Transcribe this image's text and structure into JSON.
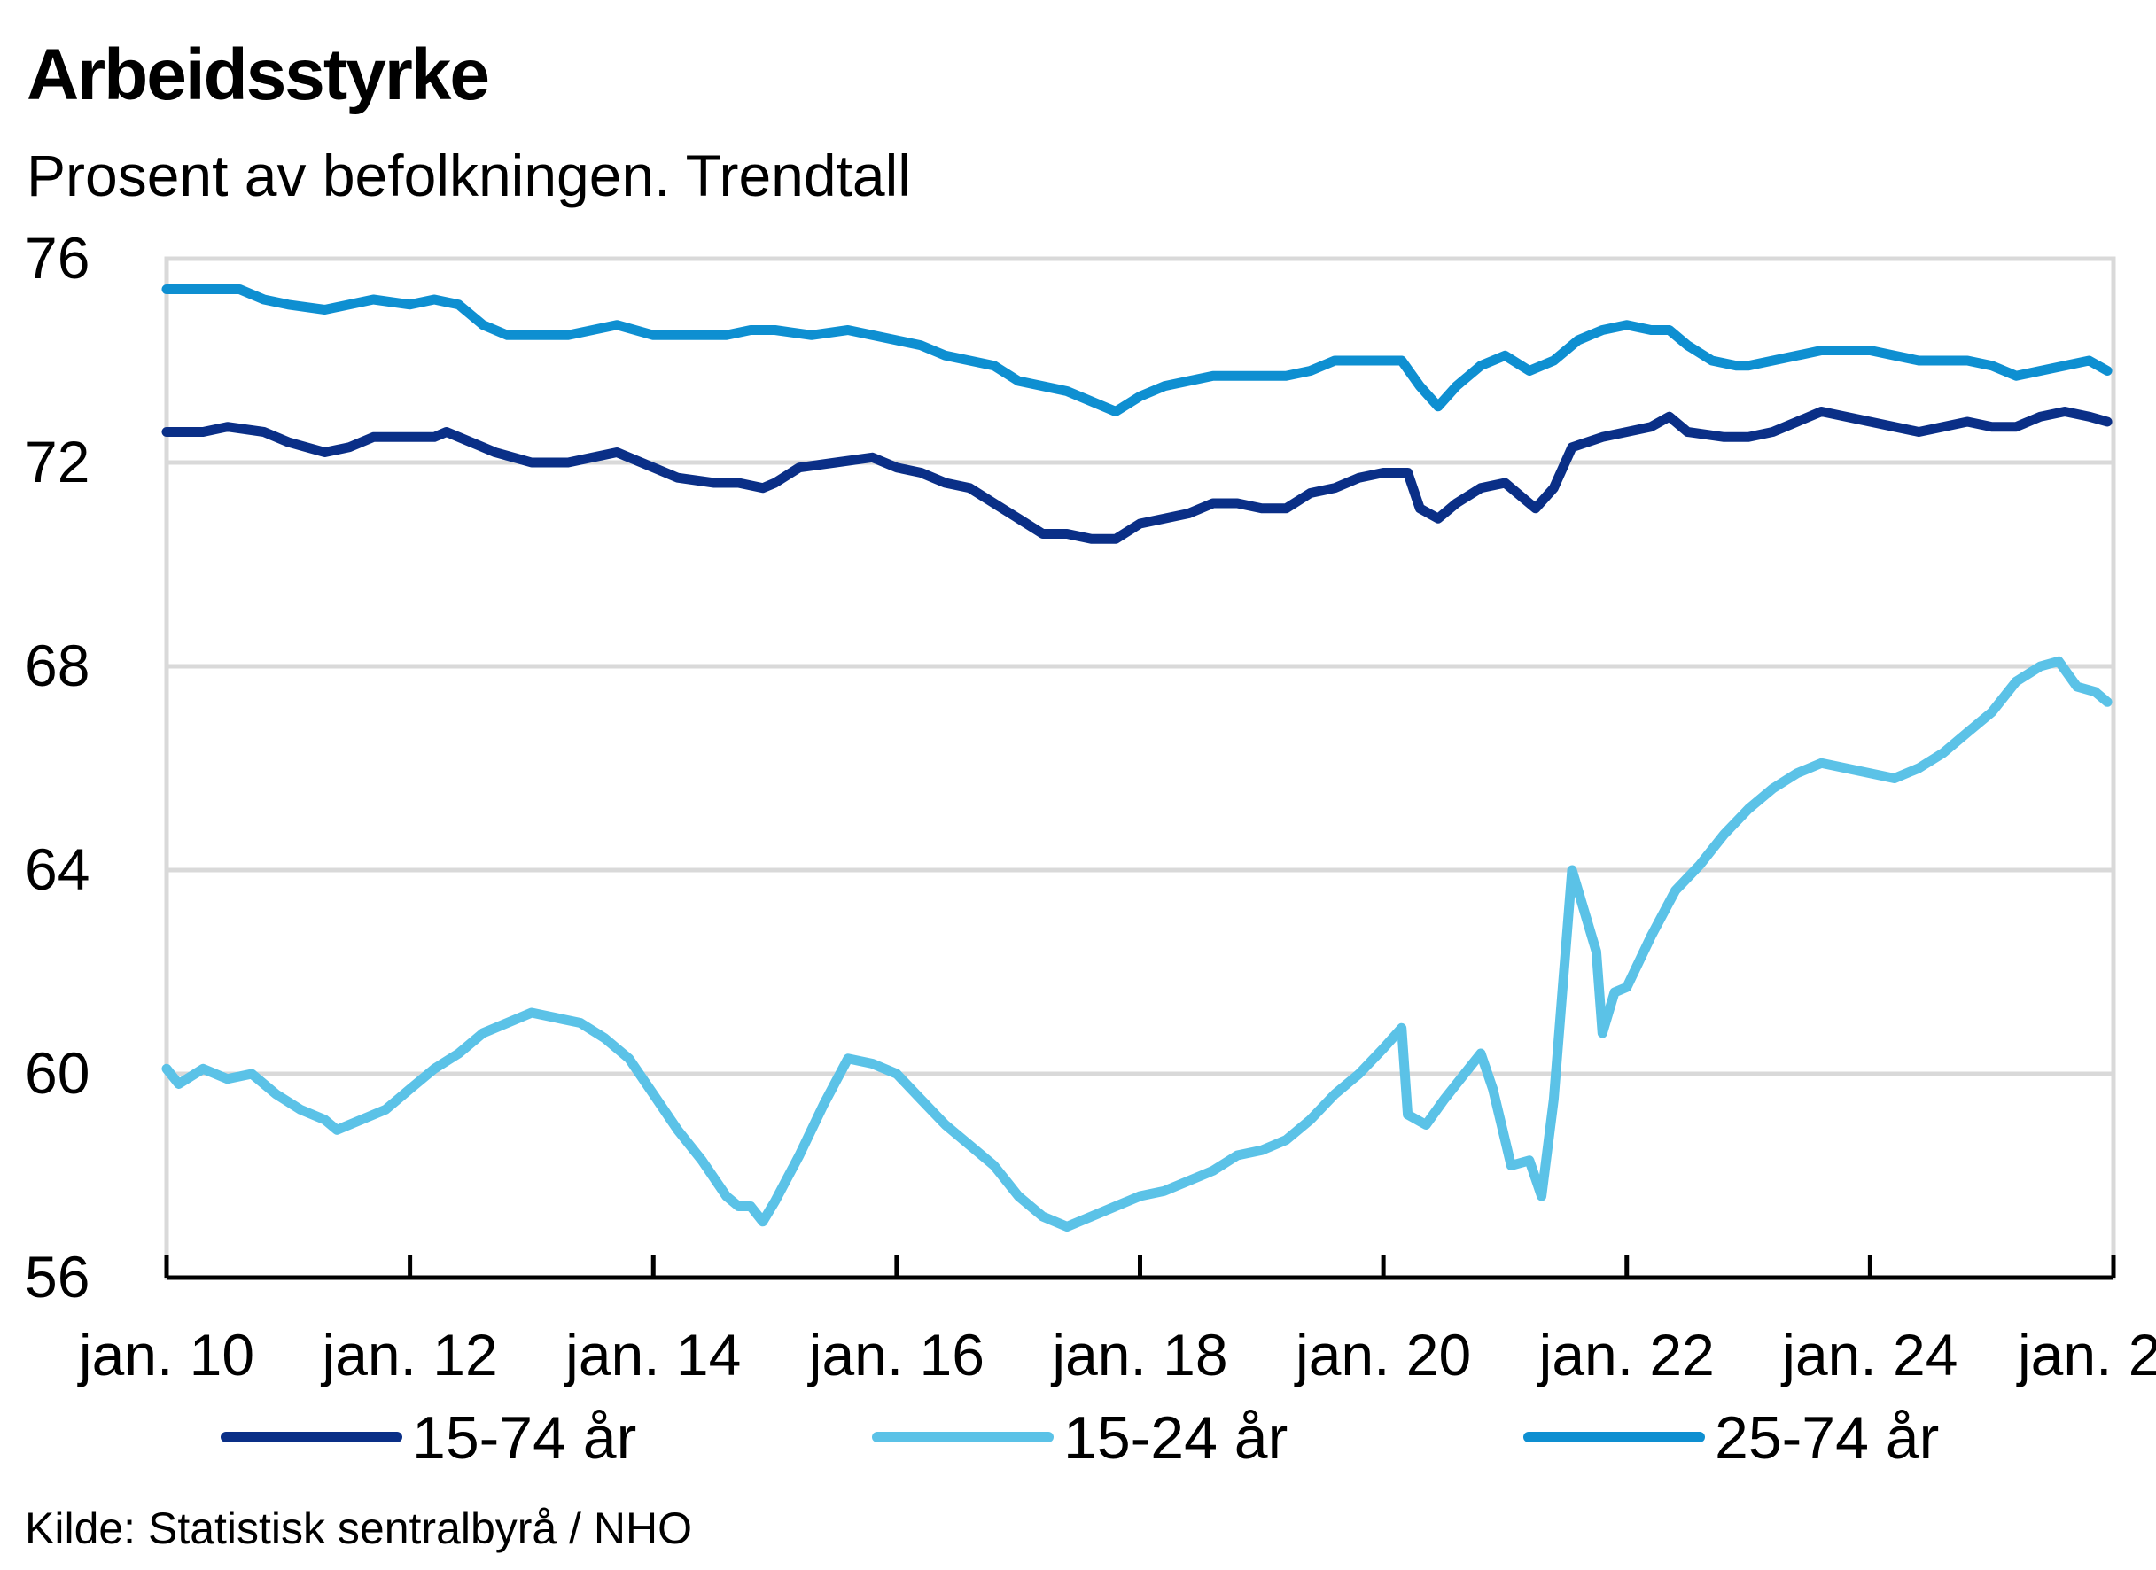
{
  "header": {
    "title": "Arbeidsstyrke",
    "subtitle": "Prosent av befolkningen. Trendtall"
  },
  "footer": {
    "source": "Kilde: Statistisk sentralbyrå / NHO"
  },
  "chart_data": {
    "type": "line",
    "title": "Arbeidsstyrke",
    "subtitle": "Prosent av befolkningen. Trendtall",
    "xlabel": "",
    "ylabel": "",
    "ylim": [
      56,
      76
    ],
    "yticks": [
      56,
      60,
      64,
      68,
      72,
      76
    ],
    "xlim": [
      2010.0,
      2026.0
    ],
    "xticks": [
      {
        "x": 2010,
        "label": "jan. 10"
      },
      {
        "x": 2012,
        "label": "jan. 12"
      },
      {
        "x": 2014,
        "label": "jan. 14"
      },
      {
        "x": 2016,
        "label": "jan. 16"
      },
      {
        "x": 2018,
        "label": "jan. 18"
      },
      {
        "x": 2020,
        "label": "jan. 20"
      },
      {
        "x": 2022,
        "label": "jan. 22"
      },
      {
        "x": 2024,
        "label": "jan. 24"
      },
      {
        "x": 2026,
        "label": "jan. 2"
      }
    ],
    "grid": true,
    "legend_position": "bottom",
    "series": [
      {
        "name": "15-74 år",
        "color": "#0a2f87",
        "points": [
          [
            2010.0,
            72.6
          ],
          [
            2010.3,
            72.6
          ],
          [
            2010.5,
            72.7
          ],
          [
            2010.8,
            72.6
          ],
          [
            2011.0,
            72.4
          ],
          [
            2011.3,
            72.2
          ],
          [
            2011.5,
            72.3
          ],
          [
            2011.7,
            72.5
          ],
          [
            2012.0,
            72.5
          ],
          [
            2012.2,
            72.5
          ],
          [
            2012.3,
            72.6
          ],
          [
            2012.5,
            72.4
          ],
          [
            2012.7,
            72.2
          ],
          [
            2013.0,
            72.0
          ],
          [
            2013.3,
            72.0
          ],
          [
            2013.5,
            72.1
          ],
          [
            2013.7,
            72.2
          ],
          [
            2014.0,
            71.9
          ],
          [
            2014.2,
            71.7
          ],
          [
            2014.5,
            71.6
          ],
          [
            2014.7,
            71.6
          ],
          [
            2014.9,
            71.5
          ],
          [
            2015.0,
            71.6
          ],
          [
            2015.2,
            71.9
          ],
          [
            2015.5,
            72.0
          ],
          [
            2015.8,
            72.1
          ],
          [
            2016.0,
            71.9
          ],
          [
            2016.2,
            71.8
          ],
          [
            2016.4,
            71.6
          ],
          [
            2016.6,
            71.5
          ],
          [
            2016.8,
            71.2
          ],
          [
            2017.0,
            70.9
          ],
          [
            2017.2,
            70.6
          ],
          [
            2017.4,
            70.6
          ],
          [
            2017.6,
            70.5
          ],
          [
            2017.8,
            70.5
          ],
          [
            2018.0,
            70.8
          ],
          [
            2018.2,
            70.9
          ],
          [
            2018.4,
            71.0
          ],
          [
            2018.6,
            71.2
          ],
          [
            2018.8,
            71.2
          ],
          [
            2019.0,
            71.1
          ],
          [
            2019.2,
            71.1
          ],
          [
            2019.4,
            71.4
          ],
          [
            2019.6,
            71.5
          ],
          [
            2019.8,
            71.7
          ],
          [
            2020.0,
            71.8
          ],
          [
            2020.2,
            71.8
          ],
          [
            2020.3,
            71.1
          ],
          [
            2020.45,
            70.9
          ],
          [
            2020.6,
            71.2
          ],
          [
            2020.8,
            71.5
          ],
          [
            2021.0,
            71.6
          ],
          [
            2021.15,
            71.3
          ],
          [
            2021.25,
            71.1
          ],
          [
            2021.4,
            71.5
          ],
          [
            2021.55,
            72.3
          ],
          [
            2021.8,
            72.5
          ],
          [
            2022.0,
            72.6
          ],
          [
            2022.2,
            72.7
          ],
          [
            2022.35,
            72.9
          ],
          [
            2022.5,
            72.6
          ],
          [
            2022.8,
            72.5
          ],
          [
            2023.0,
            72.5
          ],
          [
            2023.2,
            72.6
          ],
          [
            2023.4,
            72.8
          ],
          [
            2023.6,
            73.0
          ],
          [
            2023.8,
            72.9
          ],
          [
            2024.0,
            72.8
          ],
          [
            2024.2,
            72.7
          ],
          [
            2024.4,
            72.6
          ],
          [
            2024.6,
            72.7
          ],
          [
            2024.8,
            72.8
          ],
          [
            2025.0,
            72.7
          ],
          [
            2025.2,
            72.7
          ],
          [
            2025.4,
            72.9
          ],
          [
            2025.6,
            73.0
          ],
          [
            2025.8,
            72.9
          ],
          [
            2025.95,
            72.8
          ]
        ]
      },
      {
        "name": "15-24 år",
        "color": "#5bc2e7",
        "points": [
          [
            2010.0,
            60.1
          ],
          [
            2010.1,
            59.8
          ],
          [
            2010.3,
            60.1
          ],
          [
            2010.5,
            59.9
          ],
          [
            2010.7,
            60.0
          ],
          [
            2010.9,
            59.6
          ],
          [
            2011.1,
            59.3
          ],
          [
            2011.3,
            59.1
          ],
          [
            2011.4,
            58.9
          ],
          [
            2011.6,
            59.1
          ],
          [
            2011.8,
            59.3
          ],
          [
            2012.0,
            59.7
          ],
          [
            2012.2,
            60.1
          ],
          [
            2012.4,
            60.4
          ],
          [
            2012.6,
            60.8
          ],
          [
            2012.8,
            61.0
          ],
          [
            2013.0,
            61.2
          ],
          [
            2013.2,
            61.1
          ],
          [
            2013.4,
            61.0
          ],
          [
            2013.6,
            60.7
          ],
          [
            2013.8,
            60.3
          ],
          [
            2014.0,
            59.6
          ],
          [
            2014.2,
            58.9
          ],
          [
            2014.4,
            58.3
          ],
          [
            2014.6,
            57.6
          ],
          [
            2014.7,
            57.4
          ],
          [
            2014.8,
            57.4
          ],
          [
            2014.9,
            57.1
          ],
          [
            2015.0,
            57.5
          ],
          [
            2015.2,
            58.4
          ],
          [
            2015.4,
            59.4
          ],
          [
            2015.6,
            60.3
          ],
          [
            2015.8,
            60.2
          ],
          [
            2016.0,
            60.0
          ],
          [
            2016.2,
            59.5
          ],
          [
            2016.4,
            59.0
          ],
          [
            2016.6,
            58.6
          ],
          [
            2016.8,
            58.2
          ],
          [
            2017.0,
            57.6
          ],
          [
            2017.2,
            57.2
          ],
          [
            2017.4,
            57.0
          ],
          [
            2017.6,
            57.2
          ],
          [
            2017.8,
            57.4
          ],
          [
            2018.0,
            57.6
          ],
          [
            2018.2,
            57.7
          ],
          [
            2018.4,
            57.9
          ],
          [
            2018.6,
            58.1
          ],
          [
            2018.8,
            58.4
          ],
          [
            2019.0,
            58.5
          ],
          [
            2019.2,
            58.7
          ],
          [
            2019.4,
            59.1
          ],
          [
            2019.6,
            59.6
          ],
          [
            2019.8,
            60.0
          ],
          [
            2020.0,
            60.5
          ],
          [
            2020.15,
            60.9
          ],
          [
            2020.2,
            59.2
          ],
          [
            2020.35,
            59.0
          ],
          [
            2020.5,
            59.5
          ],
          [
            2020.7,
            60.1
          ],
          [
            2020.8,
            60.4
          ],
          [
            2020.9,
            59.7
          ],
          [
            2021.05,
            58.2
          ],
          [
            2021.2,
            58.3
          ],
          [
            2021.3,
            57.6
          ],
          [
            2021.4,
            59.5
          ],
          [
            2021.55,
            64.0
          ],
          [
            2021.65,
            63.2
          ],
          [
            2021.75,
            62.4
          ],
          [
            2021.8,
            60.8
          ],
          [
            2021.9,
            61.6
          ],
          [
            2022.0,
            61.7
          ],
          [
            2022.2,
            62.7
          ],
          [
            2022.4,
            63.6
          ],
          [
            2022.6,
            64.1
          ],
          [
            2022.8,
            64.7
          ],
          [
            2023.0,
            65.2
          ],
          [
            2023.2,
            65.6
          ],
          [
            2023.4,
            65.9
          ],
          [
            2023.6,
            66.1
          ],
          [
            2023.8,
            66.0
          ],
          [
            2024.0,
            65.9
          ],
          [
            2024.2,
            65.8
          ],
          [
            2024.4,
            66.0
          ],
          [
            2024.6,
            66.3
          ],
          [
            2024.8,
            66.7
          ],
          [
            2025.0,
            67.1
          ],
          [
            2025.2,
            67.7
          ],
          [
            2025.4,
            68.0
          ],
          [
            2025.55,
            68.1
          ],
          [
            2025.7,
            67.6
          ],
          [
            2025.85,
            67.5
          ],
          [
            2025.95,
            67.3
          ]
        ]
      },
      {
        "name": "25-74 år",
        "color": "#0e8fd1",
        "points": [
          [
            2010.0,
            75.4
          ],
          [
            2010.3,
            75.4
          ],
          [
            2010.6,
            75.4
          ],
          [
            2010.8,
            75.2
          ],
          [
            2011.0,
            75.1
          ],
          [
            2011.3,
            75.0
          ],
          [
            2011.5,
            75.1
          ],
          [
            2011.7,
            75.2
          ],
          [
            2012.0,
            75.1
          ],
          [
            2012.2,
            75.2
          ],
          [
            2012.4,
            75.1
          ],
          [
            2012.6,
            74.7
          ],
          [
            2012.8,
            74.5
          ],
          [
            2013.0,
            74.5
          ],
          [
            2013.3,
            74.5
          ],
          [
            2013.5,
            74.6
          ],
          [
            2013.7,
            74.7
          ],
          [
            2014.0,
            74.5
          ],
          [
            2014.3,
            74.5
          ],
          [
            2014.6,
            74.5
          ],
          [
            2014.8,
            74.6
          ],
          [
            2015.0,
            74.6
          ],
          [
            2015.3,
            74.5
          ],
          [
            2015.6,
            74.6
          ],
          [
            2016.0,
            74.4
          ],
          [
            2016.2,
            74.3
          ],
          [
            2016.4,
            74.1
          ],
          [
            2016.6,
            74.0
          ],
          [
            2016.8,
            73.9
          ],
          [
            2017.0,
            73.6
          ],
          [
            2017.2,
            73.5
          ],
          [
            2017.4,
            73.4
          ],
          [
            2017.6,
            73.2
          ],
          [
            2017.8,
            73.0
          ],
          [
            2018.0,
            73.3
          ],
          [
            2018.2,
            73.5
          ],
          [
            2018.4,
            73.6
          ],
          [
            2018.6,
            73.7
          ],
          [
            2018.8,
            73.7
          ],
          [
            2019.0,
            73.7
          ],
          [
            2019.2,
            73.7
          ],
          [
            2019.4,
            73.8
          ],
          [
            2019.6,
            74.0
          ],
          [
            2019.8,
            74.0
          ],
          [
            2020.0,
            74.0
          ],
          [
            2020.15,
            74.0
          ],
          [
            2020.3,
            73.5
          ],
          [
            2020.45,
            73.1
          ],
          [
            2020.6,
            73.5
          ],
          [
            2020.8,
            73.9
          ],
          [
            2021.0,
            74.1
          ],
          [
            2021.2,
            73.8
          ],
          [
            2021.4,
            74.0
          ],
          [
            2021.6,
            74.4
          ],
          [
            2021.8,
            74.6
          ],
          [
            2022.0,
            74.7
          ],
          [
            2022.2,
            74.6
          ],
          [
            2022.35,
            74.6
          ],
          [
            2022.5,
            74.3
          ],
          [
            2022.7,
            74.0
          ],
          [
            2022.9,
            73.9
          ],
          [
            2023.0,
            73.9
          ],
          [
            2023.2,
            74.0
          ],
          [
            2023.4,
            74.1
          ],
          [
            2023.6,
            74.2
          ],
          [
            2023.8,
            74.2
          ],
          [
            2024.0,
            74.2
          ],
          [
            2024.2,
            74.1
          ],
          [
            2024.4,
            74.0
          ],
          [
            2024.6,
            74.0
          ],
          [
            2024.8,
            74.0
          ],
          [
            2025.0,
            73.9
          ],
          [
            2025.2,
            73.7
          ],
          [
            2025.4,
            73.8
          ],
          [
            2025.6,
            73.9
          ],
          [
            2025.8,
            74.0
          ],
          [
            2025.95,
            73.8
          ]
        ]
      }
    ]
  }
}
